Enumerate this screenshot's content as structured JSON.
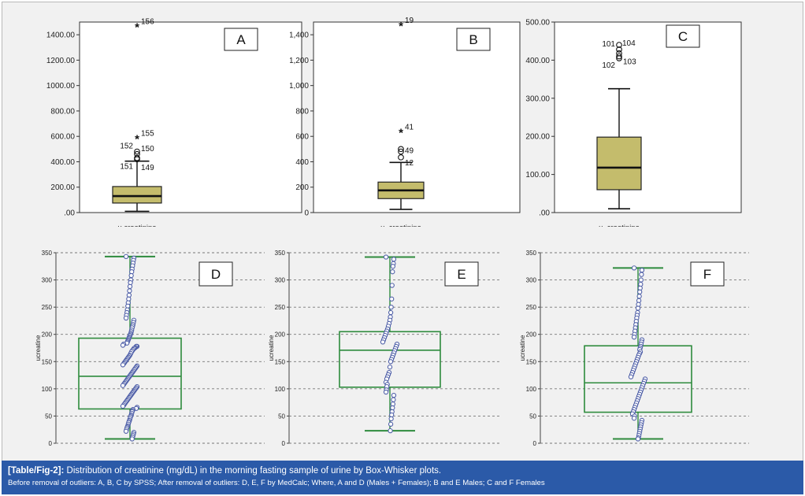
{
  "figure": {
    "caption_tag": "[Table/Fig-2]:",
    "caption_title": "Distribution of creatinine (mg/dL) in the morning fasting sample of urine by Box-Whisker plots.",
    "caption_note": "Before removal of outliers: A, B, C by SPSS; After removal of outliers: D, E, F by MedCalc; Where, A and D (Males + Females); B and E Males; C and F Females",
    "colors": {
      "spss_box": "#c4bc6c",
      "medcalc_box": "#2e8b3d",
      "dots": "#5060a8",
      "caption_bg": "#2b5aa8"
    }
  },
  "chart_data": [
    {
      "panel": "A",
      "type": "box",
      "software": "SPSS",
      "group": "Males + Females",
      "xlabel": "u.creatinine",
      "yticks": [
        ".00",
        "200.00",
        "400.00",
        "600.00",
        "800.00",
        "1000.00",
        "1200.00",
        "1400.00"
      ],
      "ylim": [
        0,
        1500
      ],
      "box": {
        "q1": 75,
        "median": 130,
        "q3": 205,
        "whisker_low": 10,
        "whisker_high": 405
      },
      "outliers": [
        {
          "label": "156",
          "value": 1460,
          "marker": "*"
        },
        {
          "label": "155",
          "value": 580,
          "marker": "*"
        },
        {
          "label": "152",
          "value": 480,
          "marker": "o"
        },
        {
          "label": "150",
          "value": 460,
          "marker": "o"
        },
        {
          "label": "151",
          "value": 430,
          "marker": "o"
        },
        {
          "label": "149",
          "value": 420,
          "marker": "o"
        }
      ]
    },
    {
      "panel": "B",
      "type": "box",
      "software": "SPSS",
      "group": "Males",
      "xlabel": "u_creatinine",
      "yticks": [
        "0",
        "200",
        "400",
        "600",
        "800",
        "1,000",
        "1,200",
        "1,400"
      ],
      "ylim": [
        0,
        1500
      ],
      "box": {
        "q1": 110,
        "median": 175,
        "q3": 240,
        "whisker_low": 25,
        "whisker_high": 395
      },
      "outliers": [
        {
          "label": "19",
          "value": 1470,
          "marker": "*"
        },
        {
          "label": "41",
          "value": 630,
          "marker": "*"
        },
        {
          "label": "",
          "value": 500,
          "marker": "o"
        },
        {
          "label": "49",
          "value": 480,
          "marker": "o"
        },
        {
          "label": "12",
          "value": 435,
          "marker": "o"
        }
      ]
    },
    {
      "panel": "C",
      "type": "box",
      "software": "SPSS",
      "group": "Females",
      "xlabel": "u_creatinine",
      "yticks": [
        ".00",
        "100.00",
        "200.00",
        "300.00",
        "400.00",
        "500.00"
      ],
      "ylim": [
        0,
        500
      ],
      "box": {
        "q1": 60,
        "median": 118,
        "q3": 198,
        "whisker_low": 10,
        "whisker_high": 325
      },
      "outliers": [
        {
          "label": "104",
          "value": 440,
          "marker": "o"
        },
        {
          "label": "101",
          "value": 428,
          "marker": "o"
        },
        {
          "label": "",
          "value": 418,
          "marker": "o"
        },
        {
          "label": "102",
          "value": 405,
          "marker": "o"
        },
        {
          "label": "103",
          "value": 410,
          "marker": "o"
        }
      ]
    },
    {
      "panel": "D",
      "type": "box",
      "software": "MedCalc",
      "group": "Males + Females",
      "ylabel": "ucreatine",
      "yticks": [
        "0",
        "50",
        "100",
        "150",
        "200",
        "250",
        "300",
        "350"
      ],
      "ylim": [
        0,
        350
      ],
      "box": {
        "q1": 63,
        "median": 123,
        "q3": 193,
        "whisker_low": 8,
        "whisker_high": 343
      },
      "points": [
        343,
        340,
        336,
        331,
        326,
        320,
        315,
        308,
        300,
        295,
        288,
        280,
        272,
        265,
        258,
        252,
        245,
        240,
        235,
        230,
        226,
        222,
        218,
        215,
        212,
        208,
        205,
        202,
        200,
        198,
        196,
        194,
        192,
        190,
        188,
        186,
        184,
        182,
        180,
        178,
        178,
        176,
        175,
        174,
        172,
        170,
        168,
        165,
        162,
        160,
        158,
        156,
        154,
        152,
        150,
        148,
        146,
        144,
        142,
        140,
        138,
        136,
        134,
        132,
        130,
        128,
        126,
        124,
        122,
        120,
        118,
        116,
        114,
        112,
        110,
        108,
        106,
        104,
        102,
        100,
        98,
        96,
        94,
        92,
        90,
        88,
        86,
        84,
        82,
        80,
        78,
        76,
        74,
        72,
        70,
        68,
        66,
        64,
        62,
        60,
        58,
        55,
        52,
        50,
        48,
        45,
        42,
        40,
        38,
        35,
        32,
        30,
        28,
        25,
        22,
        20,
        17,
        14,
        11,
        8
      ]
    },
    {
      "panel": "E",
      "type": "box",
      "software": "MedCalc",
      "group": "Males",
      "ylabel": "ucreatine",
      "yticks": [
        "0",
        "50",
        "100",
        "150",
        "200",
        "250",
        "300",
        "350"
      ],
      "ylim": [
        0,
        350
      ],
      "box": {
        "q1": 103,
        "median": 171,
        "q3": 205,
        "whisker_low": 23,
        "whisker_high": 342
      },
      "points": [
        342,
        338,
        330,
        325,
        315,
        290,
        265,
        250,
        240,
        232,
        226,
        220,
        215,
        210,
        206,
        202,
        198,
        194,
        190,
        186,
        182,
        178,
        174,
        170,
        166,
        162,
        158,
        154,
        150,
        140,
        130,
        126,
        122,
        118,
        112,
        108,
        104,
        98,
        94,
        88,
        80,
        72,
        65,
        58,
        52,
        45,
        35,
        23
      ]
    },
    {
      "panel": "F",
      "type": "box",
      "software": "MedCalc",
      "group": "Females",
      "ylabel": "ucreatine",
      "yticks": [
        "0",
        "50",
        "100",
        "150",
        "200",
        "250",
        "300",
        "350"
      ],
      "ylim": [
        0,
        350
      ],
      "box": {
        "q1": 57,
        "median": 111,
        "q3": 179,
        "whisker_low": 8,
        "whisker_high": 322
      },
      "points": [
        322,
        318,
        310,
        300,
        292,
        285,
        278,
        270,
        262,
        255,
        248,
        240,
        235,
        230,
        224,
        218,
        212,
        206,
        200,
        195,
        190,
        186,
        182,
        178,
        175,
        172,
        168,
        165,
        162,
        158,
        154,
        150,
        146,
        142,
        138,
        134,
        130,
        126,
        122,
        118,
        114,
        110,
        106,
        102,
        98,
        94,
        90,
        86,
        82,
        78,
        74,
        70,
        66,
        62,
        58,
        54,
        50,
        46,
        42,
        38,
        34,
        30,
        26,
        22,
        18,
        14,
        10,
        8
      ]
    }
  ]
}
